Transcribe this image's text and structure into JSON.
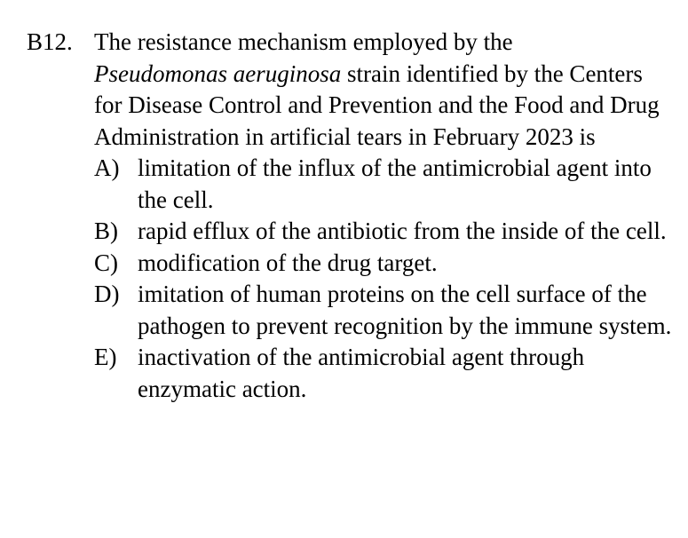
{
  "question": {
    "number": "B12.",
    "stem_before": "The resistance mechanism employed by the",
    "stem_italic": "Pseudomonas aeruginosa",
    "stem_after": "strain identified by the Centers for Disease Control and Prevention and the Food and Drug Administration in artificial tears in February 2023 is",
    "options": [
      {
        "letter": "A)",
        "text": "limitation of the influx of the antimicrobial agent into the cell."
      },
      {
        "letter": "B)",
        "text": "rapid efflux of the antibiotic from the inside of the cell."
      },
      {
        "letter": "C)",
        "text": "modification of the drug target."
      },
      {
        "letter": "D)",
        "text": "imitation of human proteins on the cell surface of the pathogen to prevent recognition by the immune system."
      },
      {
        "letter": "E)",
        "text": "inactivation of the antimicrobial agent through enzymatic action."
      }
    ]
  }
}
